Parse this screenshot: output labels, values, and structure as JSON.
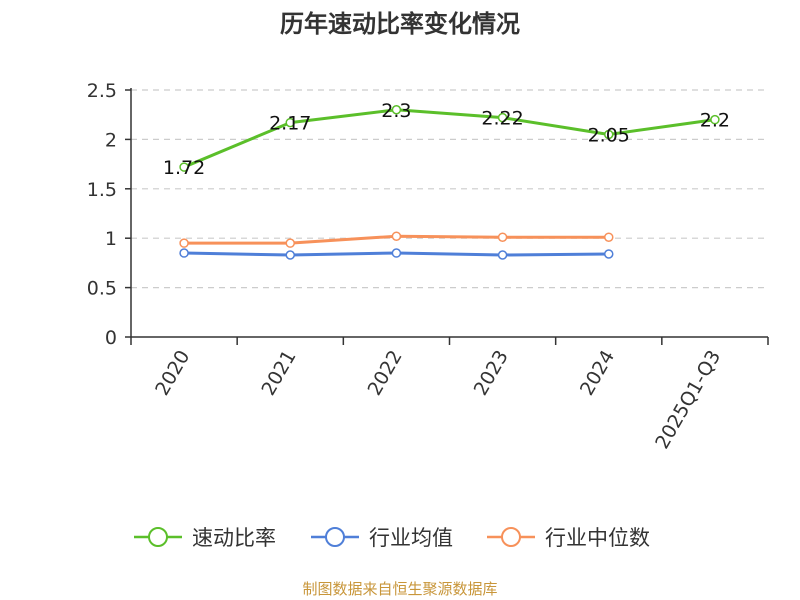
{
  "chart_data": {
    "type": "line",
    "title": "历年速动比率变化情况",
    "categories": [
      "2020",
      "2021",
      "2022",
      "2023",
      "2024",
      "2025Q1-Q3"
    ],
    "ylim": [
      0,
      2.5
    ],
    "yticks": [
      "0",
      "0.5",
      "1",
      "1.5",
      "2",
      "2.5"
    ],
    "grid": "horizontal dashed",
    "legend_position": "bottom",
    "series": [
      {
        "name": "速动比率",
        "color": "#5bbf2a",
        "values": [
          1.72,
          2.17,
          2.3,
          2.22,
          2.05,
          2.2
        ],
        "labels": [
          "1.72",
          "2.17",
          "2.3",
          "2.22",
          "2.05",
          "2.2"
        ]
      },
      {
        "name": "行业均值",
        "color": "#4f7fd8",
        "values": [
          0.85,
          0.83,
          0.85,
          0.83,
          0.84,
          null
        ]
      },
      {
        "name": "行业中位数",
        "color": "#f7915a",
        "values": [
          0.95,
          0.95,
          1.02,
          1.01,
          1.01,
          null
        ]
      }
    ]
  },
  "footer": {
    "source": "制图数据来自恒生聚源数据库"
  }
}
